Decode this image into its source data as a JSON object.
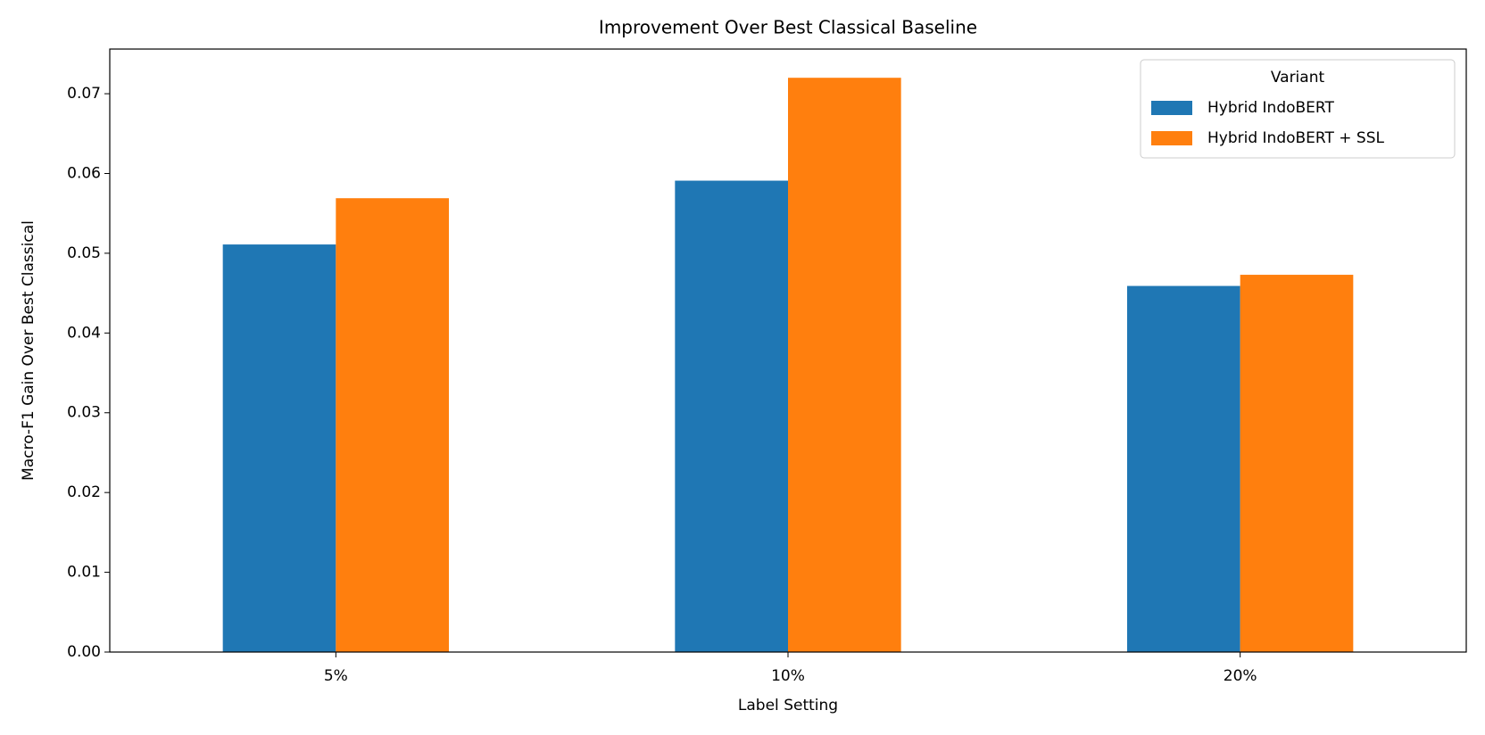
{
  "chart_data": {
    "type": "bar",
    "title": "Improvement Over Best Classical Baseline",
    "x_label": "Label Setting",
    "y_label": "Macro-F1 Gain Over Best Classical",
    "categories": [
      "5%",
      "10%",
      "20%"
    ],
    "series": [
      {
        "name": "Hybrid IndoBERT",
        "color": "#1f77b4",
        "values": [
          0.0511,
          0.0591,
          0.0459
        ]
      },
      {
        "name": "Hybrid IndoBERT + SSL",
        "color": "#ff7f0e",
        "values": [
          0.0569,
          0.072,
          0.0473
        ]
      }
    ],
    "ylim": [
      0,
      0.0756
    ],
    "yticks": [
      {
        "value": 0,
        "label": "0.00"
      },
      {
        "value": 0.01,
        "label": "0.01"
      },
      {
        "value": 0.02,
        "label": "0.02"
      },
      {
        "value": 0.03,
        "label": "0.03"
      },
      {
        "value": 0.04,
        "label": "0.04"
      },
      {
        "value": 0.05,
        "label": "0.05"
      },
      {
        "value": 0.06,
        "label": "0.06"
      },
      {
        "value": 0.07,
        "label": "0.07"
      }
    ],
    "legend_title": "Variant",
    "legend_position": "upper right",
    "grid": false
  }
}
